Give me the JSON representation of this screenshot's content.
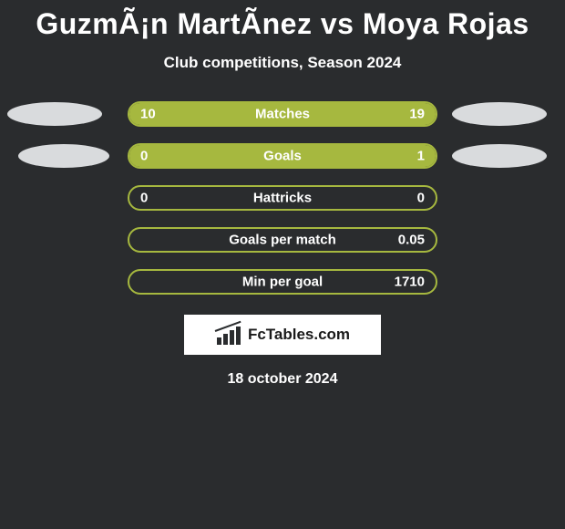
{
  "title": "GuzmÃ¡n MartÃ­nez vs Moya Rojas",
  "subtitle": "Club competitions, Season 2024",
  "colors": {
    "p1": "#a6b83f",
    "p2": "#dcdfe3",
    "dot1": "#d9dbdd",
    "dot2": "#d9dbdd",
    "border_default": "#a6b83f",
    "bg": "#2a2c2e"
  },
  "rows": [
    {
      "metric": "Matches",
      "left": "10",
      "right": "19",
      "fill_side": "right",
      "fill_pct": 100,
      "border_color": "#a6b83f",
      "fill_color": "#a6b83f",
      "dot_left": true,
      "dot_right": true
    },
    {
      "metric": "Goals",
      "left": "0",
      "right": "1",
      "fill_side": "right",
      "fill_pct": 100,
      "border_color": "#a6b83f",
      "fill_color": "#a6b83f",
      "dot_left": true,
      "dot_right": true
    },
    {
      "metric": "Hattricks",
      "left": "0",
      "right": "0",
      "fill_side": "none",
      "fill_pct": 0,
      "border_color": "#a6b83f",
      "fill_color": "#a6b83f",
      "dot_left": false,
      "dot_right": false
    },
    {
      "metric": "Goals per match",
      "left": "",
      "right": "0.05",
      "fill_side": "none",
      "fill_pct": 0,
      "border_color": "#a6b83f",
      "fill_color": "#a6b83f",
      "dot_left": false,
      "dot_right": false
    },
    {
      "metric": "Min per goal",
      "left": "",
      "right": "1710",
      "fill_side": "none",
      "fill_pct": 0,
      "border_color": "#a6b83f",
      "fill_color": "#a6b83f",
      "dot_left": false,
      "dot_right": false
    }
  ],
  "brand": "FcTables.com",
  "date": "18 october 2024"
}
